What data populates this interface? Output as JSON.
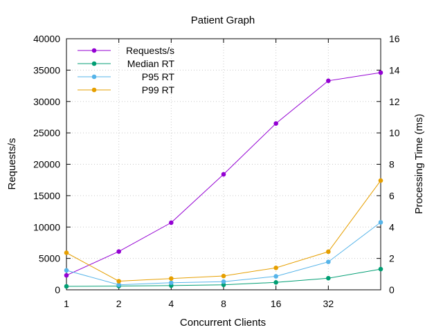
{
  "chart_data": {
    "type": "line",
    "title": "Patient Graph",
    "xlabel": "Concurrent Clients",
    "ylabel": "Requests/s",
    "y2label": "Processing Time (ms)",
    "x_scale": "log2",
    "x": [
      1,
      2,
      4,
      8,
      16,
      32,
      64
    ],
    "xticks": [
      "1",
      "2",
      "4",
      "8",
      "16",
      "32"
    ],
    "ylim": [
      0,
      40000
    ],
    "yticks": [
      "0",
      "5000",
      "10000",
      "15000",
      "20000",
      "25000",
      "30000",
      "35000",
      "40000"
    ],
    "y2lim": [
      0,
      16
    ],
    "y2ticks": [
      "0",
      "2",
      "4",
      "6",
      "8",
      "10",
      "12",
      "14",
      "16"
    ],
    "grid": true,
    "legend_position": "top-left",
    "series": [
      {
        "name": "Requests/s",
        "axis": "y",
        "color": "#9400d3",
        "values": [
          2300,
          6100,
          10700,
          18400,
          26500,
          33300,
          34600
        ]
      },
      {
        "name": "Median RT",
        "axis": "y2",
        "color": "#009e73",
        "values": [
          0.22,
          0.24,
          0.27,
          0.32,
          0.47,
          0.74,
          1.32
        ]
      },
      {
        "name": "P95 RT",
        "axis": "y2",
        "color": "#56b4e9",
        "values": [
          1.24,
          0.32,
          0.45,
          0.52,
          0.86,
          1.78,
          4.3
        ]
      },
      {
        "name": "P99 RT",
        "axis": "y2",
        "color": "#e69f00",
        "values": [
          2.36,
          0.55,
          0.72,
          0.88,
          1.4,
          2.43,
          6.96
        ]
      }
    ]
  }
}
